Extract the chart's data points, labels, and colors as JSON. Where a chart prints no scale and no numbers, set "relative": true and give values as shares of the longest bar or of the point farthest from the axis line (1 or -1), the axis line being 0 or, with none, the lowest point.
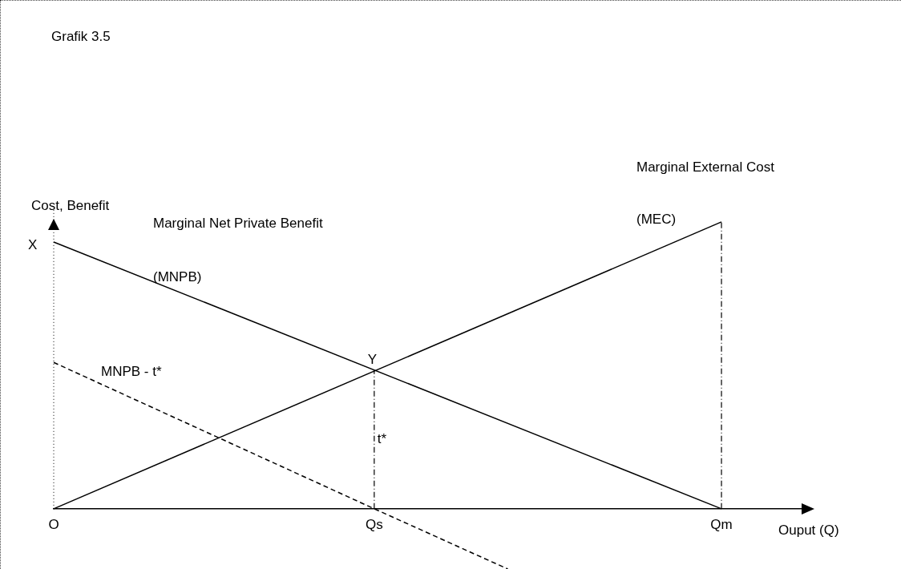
{
  "chart_data": {
    "type": "line",
    "title": "Grafik 3.5",
    "xlabel": "Ouput (Q)",
    "ylabel": "Cost, Benefit",
    "relative": true,
    "categories": [
      "O",
      null,
      null,
      null,
      null,
      null,
      null,
      null,
      null,
      null,
      null,
      null,
      "Qs",
      null,
      null,
      null,
      null,
      null,
      null,
      null,
      null,
      null,
      null,
      null,
      null,
      "Qm",
      null,
      null,
      null
    ],
    "series": [
      {
        "name": "(MNPB)",
        "color": "#000000",
        "line_style": "solid",
        "values": [
          0.93,
          null,
          null,
          null,
          null,
          null,
          null,
          null,
          null,
          null,
          null,
          null,
          null,
          null,
          null,
          null,
          null,
          null,
          null,
          null,
          null,
          null,
          null,
          null,
          null,
          0,
          null,
          null,
          null
        ]
      },
      {
        "name": "(MEC)",
        "color": "#000000",
        "line_style": "solid",
        "values": [
          0,
          null,
          null,
          null,
          null,
          null,
          null,
          null,
          null,
          null,
          null,
          null,
          null,
          null,
          null,
          null,
          null,
          null,
          null,
          null,
          null,
          null,
          null,
          null,
          null,
          1,
          null,
          null,
          null
        ]
      },
      {
        "name": "MNPB - t*",
        "color": "#000000",
        "line_style": "dashed",
        "values": [
          0.51,
          null,
          null,
          null,
          null,
          null,
          null,
          null,
          null,
          null,
          null,
          null,
          0,
          null,
          null,
          null,
          null,
          -0.21,
          null,
          null,
          null,
          null,
          null,
          null,
          null,
          null,
          null,
          null,
          null
        ]
      }
    ],
    "ref_lines": [
      {
        "axis": "x",
        "value": "Qs",
        "line_style": "dashed",
        "color": "#000000",
        "label": "t*"
      },
      {
        "axis": "x",
        "value": "Qm",
        "line_style": "dashed",
        "color": "#000000"
      }
    ],
    "annotations": [
      {
        "text": "X",
        "x": "O",
        "y": 0.93
      },
      {
        "text": "Y",
        "x": "Qs",
        "y": 0.48
      },
      "Marginal Net Private Benefit",
      "Marginal External Cost"
    ]
  }
}
